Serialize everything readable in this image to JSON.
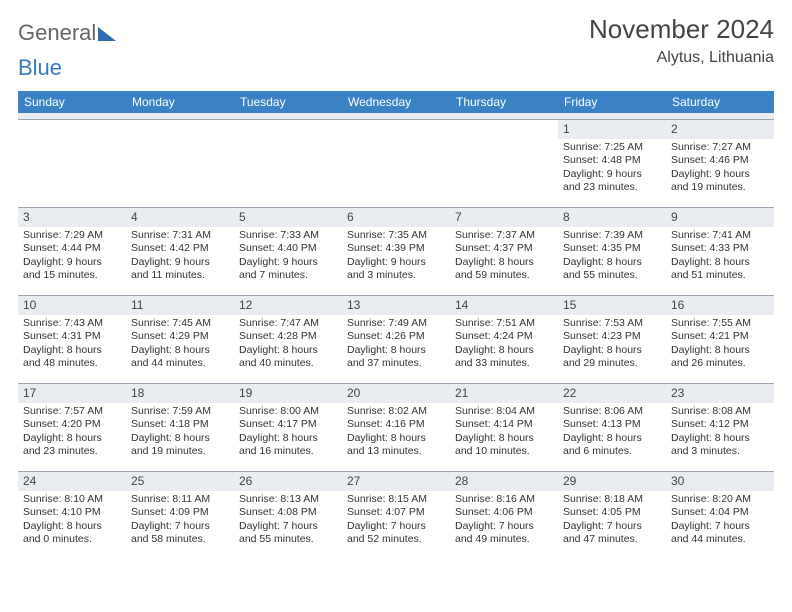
{
  "logo": {
    "part1": "General",
    "part2": "Blue"
  },
  "title": "November 2024",
  "location": "Alytus, Lithuania",
  "colors": {
    "header_bg": "#3b82c4",
    "header_fg": "#ffffff",
    "daynum_bg": "#e9edf1",
    "border": "#9aa6b2",
    "text": "#333333"
  },
  "weekdays": [
    "Sunday",
    "Monday",
    "Tuesday",
    "Wednesday",
    "Thursday",
    "Friday",
    "Saturday"
  ],
  "weeks": [
    [
      {
        "blank": true
      },
      {
        "blank": true
      },
      {
        "blank": true
      },
      {
        "blank": true
      },
      {
        "blank": true
      },
      {
        "day": "1",
        "sunrise": "Sunrise: 7:25 AM",
        "sunset": "Sunset: 4:48 PM",
        "daylight": "Daylight: 9 hours and 23 minutes."
      },
      {
        "day": "2",
        "sunrise": "Sunrise: 7:27 AM",
        "sunset": "Sunset: 4:46 PM",
        "daylight": "Daylight: 9 hours and 19 minutes."
      }
    ],
    [
      {
        "day": "3",
        "sunrise": "Sunrise: 7:29 AM",
        "sunset": "Sunset: 4:44 PM",
        "daylight": "Daylight: 9 hours and 15 minutes."
      },
      {
        "day": "4",
        "sunrise": "Sunrise: 7:31 AM",
        "sunset": "Sunset: 4:42 PM",
        "daylight": "Daylight: 9 hours and 11 minutes."
      },
      {
        "day": "5",
        "sunrise": "Sunrise: 7:33 AM",
        "sunset": "Sunset: 4:40 PM",
        "daylight": "Daylight: 9 hours and 7 minutes."
      },
      {
        "day": "6",
        "sunrise": "Sunrise: 7:35 AM",
        "sunset": "Sunset: 4:39 PM",
        "daylight": "Daylight: 9 hours and 3 minutes."
      },
      {
        "day": "7",
        "sunrise": "Sunrise: 7:37 AM",
        "sunset": "Sunset: 4:37 PM",
        "daylight": "Daylight: 8 hours and 59 minutes."
      },
      {
        "day": "8",
        "sunrise": "Sunrise: 7:39 AM",
        "sunset": "Sunset: 4:35 PM",
        "daylight": "Daylight: 8 hours and 55 minutes."
      },
      {
        "day": "9",
        "sunrise": "Sunrise: 7:41 AM",
        "sunset": "Sunset: 4:33 PM",
        "daylight": "Daylight: 8 hours and 51 minutes."
      }
    ],
    [
      {
        "day": "10",
        "sunrise": "Sunrise: 7:43 AM",
        "sunset": "Sunset: 4:31 PM",
        "daylight": "Daylight: 8 hours and 48 minutes."
      },
      {
        "day": "11",
        "sunrise": "Sunrise: 7:45 AM",
        "sunset": "Sunset: 4:29 PM",
        "daylight": "Daylight: 8 hours and 44 minutes."
      },
      {
        "day": "12",
        "sunrise": "Sunrise: 7:47 AM",
        "sunset": "Sunset: 4:28 PM",
        "daylight": "Daylight: 8 hours and 40 minutes."
      },
      {
        "day": "13",
        "sunrise": "Sunrise: 7:49 AM",
        "sunset": "Sunset: 4:26 PM",
        "daylight": "Daylight: 8 hours and 37 minutes."
      },
      {
        "day": "14",
        "sunrise": "Sunrise: 7:51 AM",
        "sunset": "Sunset: 4:24 PM",
        "daylight": "Daylight: 8 hours and 33 minutes."
      },
      {
        "day": "15",
        "sunrise": "Sunrise: 7:53 AM",
        "sunset": "Sunset: 4:23 PM",
        "daylight": "Daylight: 8 hours and 29 minutes."
      },
      {
        "day": "16",
        "sunrise": "Sunrise: 7:55 AM",
        "sunset": "Sunset: 4:21 PM",
        "daylight": "Daylight: 8 hours and 26 minutes."
      }
    ],
    [
      {
        "day": "17",
        "sunrise": "Sunrise: 7:57 AM",
        "sunset": "Sunset: 4:20 PM",
        "daylight": "Daylight: 8 hours and 23 minutes."
      },
      {
        "day": "18",
        "sunrise": "Sunrise: 7:59 AM",
        "sunset": "Sunset: 4:18 PM",
        "daylight": "Daylight: 8 hours and 19 minutes."
      },
      {
        "day": "19",
        "sunrise": "Sunrise: 8:00 AM",
        "sunset": "Sunset: 4:17 PM",
        "daylight": "Daylight: 8 hours and 16 minutes."
      },
      {
        "day": "20",
        "sunrise": "Sunrise: 8:02 AM",
        "sunset": "Sunset: 4:16 PM",
        "daylight": "Daylight: 8 hours and 13 minutes."
      },
      {
        "day": "21",
        "sunrise": "Sunrise: 8:04 AM",
        "sunset": "Sunset: 4:14 PM",
        "daylight": "Daylight: 8 hours and 10 minutes."
      },
      {
        "day": "22",
        "sunrise": "Sunrise: 8:06 AM",
        "sunset": "Sunset: 4:13 PM",
        "daylight": "Daylight: 8 hours and 6 minutes."
      },
      {
        "day": "23",
        "sunrise": "Sunrise: 8:08 AM",
        "sunset": "Sunset: 4:12 PM",
        "daylight": "Daylight: 8 hours and 3 minutes."
      }
    ],
    [
      {
        "day": "24",
        "sunrise": "Sunrise: 8:10 AM",
        "sunset": "Sunset: 4:10 PM",
        "daylight": "Daylight: 8 hours and 0 minutes."
      },
      {
        "day": "25",
        "sunrise": "Sunrise: 8:11 AM",
        "sunset": "Sunset: 4:09 PM",
        "daylight": "Daylight: 7 hours and 58 minutes."
      },
      {
        "day": "26",
        "sunrise": "Sunrise: 8:13 AM",
        "sunset": "Sunset: 4:08 PM",
        "daylight": "Daylight: 7 hours and 55 minutes."
      },
      {
        "day": "27",
        "sunrise": "Sunrise: 8:15 AM",
        "sunset": "Sunset: 4:07 PM",
        "daylight": "Daylight: 7 hours and 52 minutes."
      },
      {
        "day": "28",
        "sunrise": "Sunrise: 8:16 AM",
        "sunset": "Sunset: 4:06 PM",
        "daylight": "Daylight: 7 hours and 49 minutes."
      },
      {
        "day": "29",
        "sunrise": "Sunrise: 8:18 AM",
        "sunset": "Sunset: 4:05 PM",
        "daylight": "Daylight: 7 hours and 47 minutes."
      },
      {
        "day": "30",
        "sunrise": "Sunrise: 8:20 AM",
        "sunset": "Sunset: 4:04 PM",
        "daylight": "Daylight: 7 hours and 44 minutes."
      }
    ]
  ]
}
